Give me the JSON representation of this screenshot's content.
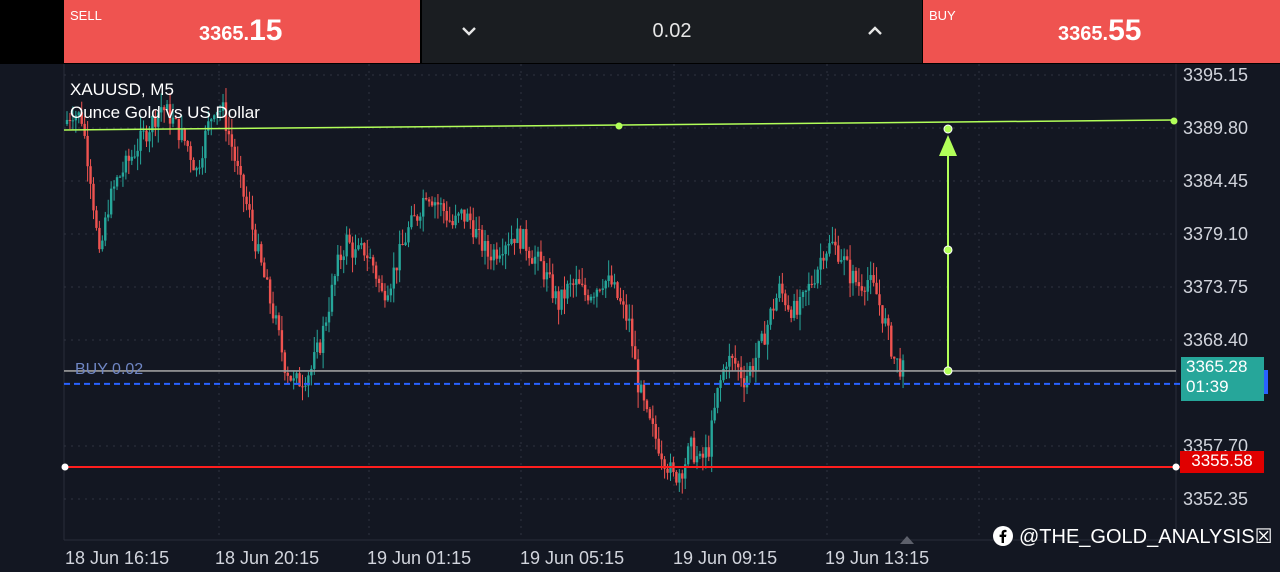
{
  "sell": {
    "label": "SELL",
    "price_main": "3365.",
    "price_frac": "15"
  },
  "buy": {
    "label": "BUY",
    "price_main": "3365.",
    "price_frac": "55"
  },
  "lot": {
    "value": "0.02"
  },
  "symbol": {
    "name": "XAUUSD, M5",
    "description": "Ounce Gold vs US Dollar"
  },
  "order": {
    "label": "BUY 0.02",
    "price": 3365.28
  },
  "bid_tag": {
    "price": "3365.28",
    "countdown": "01:39"
  },
  "stop_loss": {
    "label": "3355.58",
    "price": 3355.58
  },
  "target_line": {
    "price": 3389.8
  },
  "watermark": "@THE_GOLD_ANALYSIS☒",
  "colors": {
    "sell": "#ef5350",
    "buy": "#ef5350",
    "bull": "#26a69a",
    "bear": "#ef5350",
    "target": "#b2ff59",
    "stop": "#ff1e1e",
    "order": "#2962ff",
    "bid_line": "#9e9e9e"
  },
  "chart_data": {
    "type": "candlestick",
    "price_axis": [
      "3395.15",
      "3389.80",
      "3384.45",
      "3379.10",
      "3373.75",
      "3368.40",
      "3357.70",
      "3352.35"
    ],
    "time_axis": [
      "18 Jun 16:15",
      "18 Jun 20:15",
      "19 Jun 01:15",
      "19 Jun 05:15",
      "19 Jun 09:15",
      "19 Jun 13:15"
    ],
    "ylim": [
      3349.0,
      3397.5
    ],
    "closes": [
      3390.2,
      3391.5,
      3390.8,
      3385.0,
      3376.5,
      3382.0,
      3384.5,
      3386.0,
      3387.5,
      3389.0,
      3390.5,
      3392.0,
      3391.0,
      3389.5,
      3388.0,
      3385.5,
      3389.0,
      3392.0,
      3391.5,
      3388.0,
      3384.0,
      3381.0,
      3377.0,
      3373.5,
      3370.0,
      3366.0,
      3364.0,
      3364.5,
      3365.5,
      3368.0,
      3372.0,
      3376.0,
      3378.5,
      3377.0,
      3377.5,
      3376.0,
      3373.0,
      3374.5,
      3377.0,
      3379.5,
      3381.0,
      3383.5,
      3382.5,
      3381.5,
      3380.0,
      3381.0,
      3380.5,
      3378.5,
      3377.0,
      3377.5,
      3378.5,
      3379.0,
      3378.5,
      3377.0,
      3376.0,
      3374.0,
      3372.0,
      3373.5,
      3374.0,
      3373.0,
      3373.5,
      3374.5,
      3374.0,
      3372.0,
      3370.0,
      3364.0,
      3360.5,
      3358.5,
      3356.5,
      3354.5,
      3355.5,
      3357.5,
      3356.0,
      3357.5,
      3363.0,
      3366.5,
      3366.0,
      3364.5,
      3366.0,
      3368.0,
      3371.0,
      3373.5,
      3372.0,
      3371.0,
      3373.0,
      3375.0,
      3377.5,
      3378.0,
      3377.0,
      3375.0,
      3374.0,
      3374.5,
      3373.0,
      3370.0,
      3366.5,
      3365.3
    ],
    "levels": {
      "target": 3389.8,
      "order": 3365.28,
      "bid": 3365.28,
      "stop_loss": 3355.58
    }
  }
}
